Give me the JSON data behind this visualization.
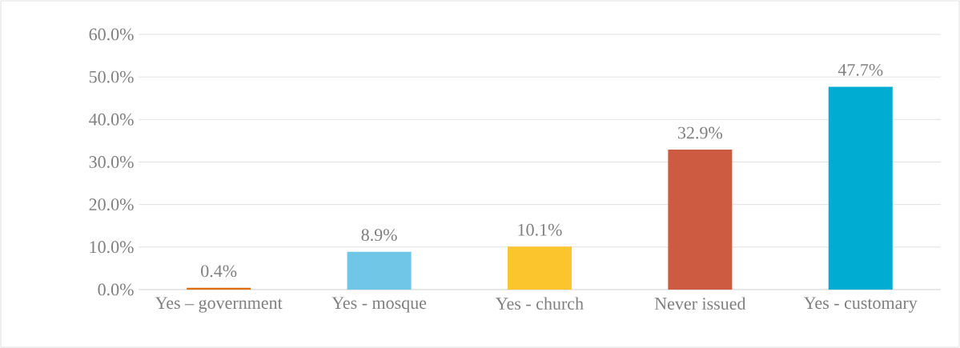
{
  "chart_data": {
    "type": "bar",
    "categories": [
      "Yes – government",
      "Yes - mosque",
      "Yes - church",
      "Never issued",
      "Yes - customary"
    ],
    "values": [
      0.4,
      8.9,
      10.1,
      32.9,
      47.7
    ],
    "colors": [
      "#e36c0a",
      "#70c6e6",
      "#fbc52e",
      "#cd5b41",
      "#00acd1"
    ],
    "value_labels": [
      "0.4%",
      "8.9%",
      "10.1%",
      "32.9%",
      "47.7%"
    ],
    "ylim": [
      0,
      60
    ],
    "yticks": [
      {
        "value": 0,
        "label": "0.0%"
      },
      {
        "value": 10,
        "label": "10.0%"
      },
      {
        "value": 20,
        "label": "20.0%"
      },
      {
        "value": 30,
        "label": "30.0%"
      },
      {
        "value": 40,
        "label": "40.0%"
      },
      {
        "value": 50,
        "label": "50.0%"
      },
      {
        "value": 60,
        "label": "60.0%"
      }
    ],
    "grid": "y"
  }
}
